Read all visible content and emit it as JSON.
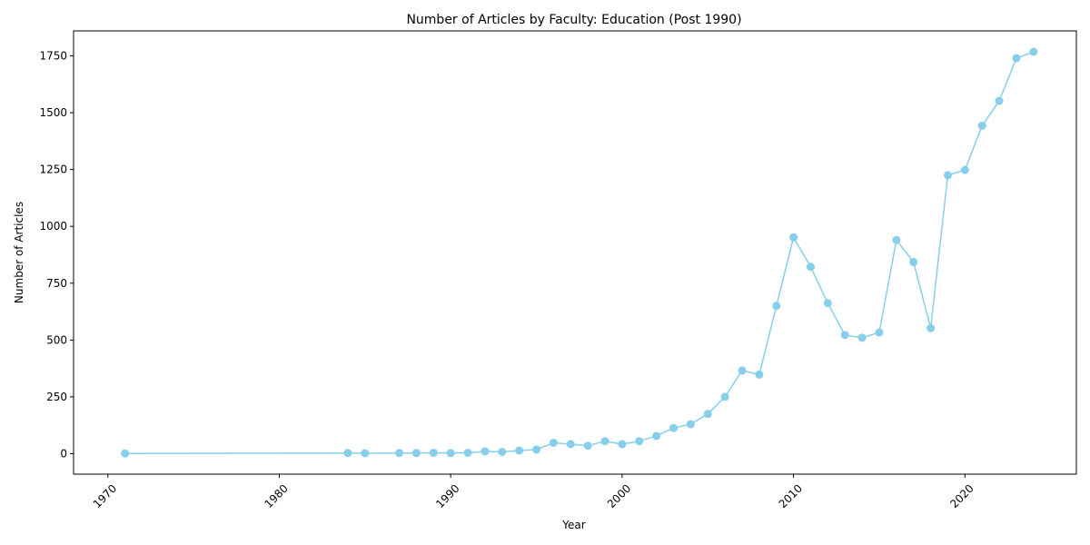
{
  "chart_data": {
    "type": "line",
    "title": "Number of Articles by Faculty: Education (Post 1990)",
    "xlabel": "Year",
    "ylabel": "Number of Articles",
    "xlim": [
      1968,
      2026.5
    ],
    "ylim": [
      -90,
      1860
    ],
    "x_ticks": [
      1970,
      1980,
      1990,
      2000,
      2010,
      2020
    ],
    "y_ticks": [
      0,
      250,
      500,
      750,
      1000,
      1250,
      1500,
      1750
    ],
    "grid": false,
    "legend": "none",
    "color": "#87ceeb",
    "series": [
      {
        "x": [
          1971,
          1984,
          1985,
          1987,
          1988,
          1989,
          1990,
          1991,
          1992,
          1993,
          1994,
          1995,
          1996,
          1997,
          1998,
          1999,
          2000,
          2001,
          2002,
          2003,
          2004,
          2005,
          2006,
          2007,
          2008,
          2009,
          2010,
          2011,
          2012,
          2013,
          2014,
          2015,
          2016,
          2017,
          2018,
          2019,
          2020,
          2021,
          2022,
          2023,
          2024
        ],
        "values": [
          1,
          3,
          2,
          3,
          3,
          4,
          3,
          4,
          10,
          8,
          14,
          18,
          48,
          42,
          35,
          55,
          42,
          55,
          78,
          113,
          130,
          175,
          250,
          366,
          348,
          650,
          952,
          822,
          662,
          522,
          510,
          533,
          940,
          843,
          552,
          1225,
          1248,
          1443,
          1552,
          1740,
          1768
        ]
      }
    ]
  }
}
